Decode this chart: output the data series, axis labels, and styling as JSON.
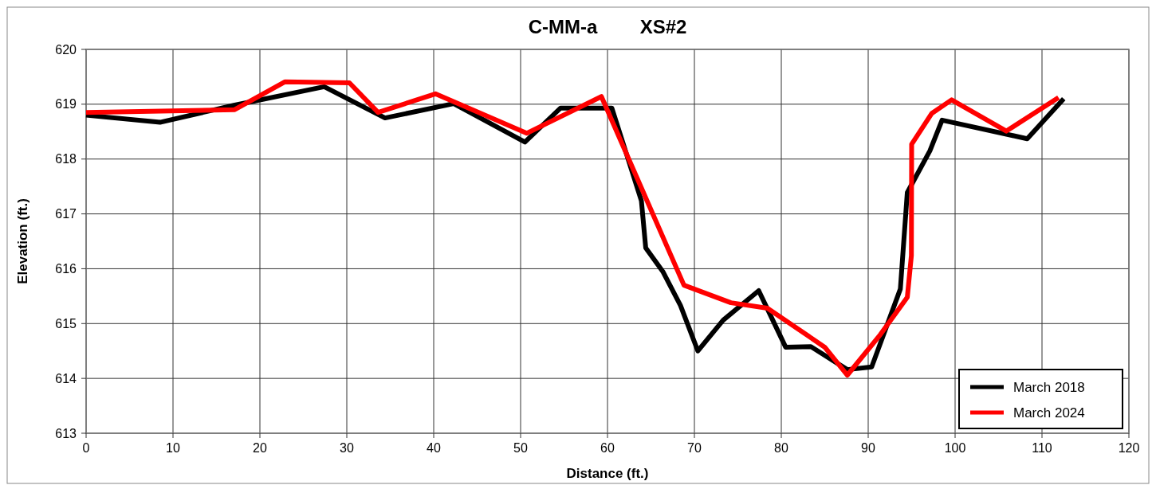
{
  "chart_data": {
    "type": "line",
    "title": "C-MM-a        XS#2",
    "xlabel": "Distance (ft.)",
    "ylabel": "Elevation (ft.)",
    "xlim": [
      0,
      120
    ],
    "xticks": [
      0,
      10,
      20,
      30,
      40,
      50,
      60,
      70,
      80,
      90,
      100,
      110,
      120
    ],
    "ylim": [
      613,
      620
    ],
    "yticks": [
      613,
      614,
      615,
      616,
      617,
      618,
      619,
      620
    ],
    "grid": true,
    "legend": "bottom right",
    "marker": "none",
    "line_style": "solid",
    "series": [
      {
        "name": "March 2018",
        "color": "#000000",
        "x": [
          0,
          8.5,
          17,
          27.4,
          34.4,
          42.3,
          50.5,
          54.6,
          60.5,
          63.9,
          64.4,
          66.4,
          68.4,
          70.4,
          73.3,
          77.4,
          80.5,
          83.4,
          87.6,
          90.4,
          93.7,
          94.5,
          97.1,
          98.5,
          108.3,
          112.5
        ],
        "values": [
          618.8,
          618.67,
          618.98,
          619.32,
          618.75,
          619.01,
          618.31,
          618.93,
          618.93,
          617.24,
          616.38,
          615.94,
          615.33,
          614.5,
          615.06,
          615.6,
          614.57,
          614.58,
          614.16,
          614.21,
          615.63,
          617.39,
          618.15,
          618.71,
          618.37,
          619.1
        ]
      },
      {
        "name": "March 2024",
        "color": "#ff0000",
        "x": [
          0,
          17.1,
          22.9,
          30.3,
          33.6,
          40.2,
          50.7,
          59.3,
          68.8,
          74.2,
          78.4,
          85,
          87.6,
          91.4,
          94.5,
          94.97,
          95,
          97.3,
          99.6,
          105.9,
          111.9
        ],
        "values": [
          618.85,
          618.9,
          619.41,
          619.39,
          618.85,
          619.19,
          618.47,
          619.14,
          615.7,
          615.38,
          615.28,
          614.57,
          614.06,
          614.8,
          615.48,
          616.24,
          618.27,
          618.83,
          619.08,
          618.51,
          619.12
        ]
      }
    ]
  }
}
